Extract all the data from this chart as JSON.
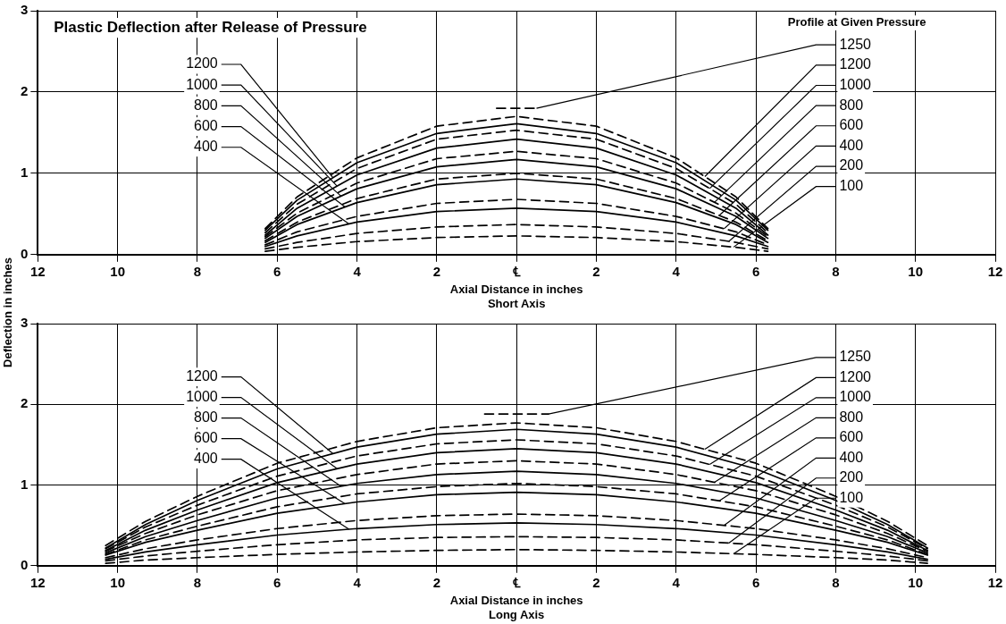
{
  "chart_data": [
    {
      "type": "line",
      "title": "Plastic Deflection after Release of Pressure",
      "annotations": [
        "Profile at Given Pressure"
      ],
      "xlabel": "Axial Distance in inches\nShort Axis",
      "ylabel": "Deflection in inches",
      "xlim": [
        -12,
        12
      ],
      "ylim": [
        0,
        3
      ],
      "xticks": [
        {
          "value": -12,
          "label": "12"
        },
        {
          "value": -10,
          "label": "10"
        },
        {
          "value": -8,
          "label": "8"
        },
        {
          "value": -6,
          "label": "6"
        },
        {
          "value": -4,
          "label": "4"
        },
        {
          "value": -2,
          "label": "2"
        },
        {
          "value": 0,
          "label": "℄"
        },
        2,
        4,
        6,
        8,
        10,
        12
      ],
      "yticks": [
        0,
        1,
        2,
        3
      ],
      "grid": true,
      "marker": "none",
      "series": [
        {
          "name": "1200",
          "color": "#000000",
          "line_style": "solid",
          "x": [
            -6.3,
            -5.5,
            -4,
            -2,
            0,
            2,
            4,
            5.5,
            6.3
          ],
          "values": [
            0.3,
            0.67,
            1.13,
            1.49,
            1.61,
            1.49,
            1.13,
            0.67,
            0.3
          ]
        },
        {
          "name": "1000",
          "color": "#000000",
          "line_style": "solid",
          "x": [
            -6.3,
            -5.5,
            -4,
            -2,
            0,
            2,
            4,
            5.5,
            6.3
          ],
          "values": [
            0.24,
            0.57,
            0.98,
            1.31,
            1.42,
            1.31,
            0.98,
            0.57,
            0.24
          ]
        },
        {
          "name": "800",
          "color": "#000000",
          "line_style": "solid",
          "x": [
            -6.3,
            -5.5,
            -4,
            -2,
            0,
            2,
            4,
            5.5,
            6.3
          ],
          "values": [
            0.2,
            0.47,
            0.81,
            1.08,
            1.17,
            1.08,
            0.81,
            0.47,
            0.2
          ]
        },
        {
          "name": "600",
          "color": "#000000",
          "line_style": "solid",
          "x": [
            -6.3,
            -5.5,
            -4,
            -2,
            0,
            2,
            4,
            5.5,
            6.3
          ],
          "values": [
            0.15,
            0.37,
            0.64,
            0.86,
            0.93,
            0.86,
            0.64,
            0.37,
            0.15
          ]
        },
        {
          "name": "400",
          "color": "#000000",
          "line_style": "solid",
          "x": [
            -6.3,
            -5.5,
            -4,
            -2,
            0,
            2,
            4,
            5.5,
            6.3
          ],
          "values": [
            0.1,
            0.23,
            0.4,
            0.53,
            0.57,
            0.53,
            0.4,
            0.23,
            0.1
          ]
        },
        {
          "name": "1250",
          "color": "#000000",
          "line_style": "dashed",
          "x": [
            -0.5,
            0,
            0.5
          ],
          "values": [
            1.8,
            1.8,
            1.8
          ]
        },
        {
          "name": "1200",
          "color": "#000000",
          "line_style": "dashed",
          "x": [
            -6.3,
            -5.5,
            -4,
            -2,
            0,
            2,
            4,
            5.5,
            6.3
          ],
          "values": [
            0.32,
            0.71,
            1.19,
            1.58,
            1.7,
            1.58,
            1.19,
            0.71,
            0.32
          ]
        },
        {
          "name": "1000",
          "color": "#000000",
          "line_style": "dashed",
          "x": [
            -6.3,
            -5.5,
            -4,
            -2,
            0,
            2,
            4,
            5.5,
            6.3
          ],
          "values": [
            0.27,
            0.62,
            1.06,
            1.42,
            1.53,
            1.42,
            1.06,
            0.62,
            0.27
          ]
        },
        {
          "name": "800",
          "color": "#000000",
          "line_style": "dashed",
          "x": [
            -6.3,
            -5.5,
            -4,
            -2,
            0,
            2,
            4,
            5.5,
            6.3
          ],
          "values": [
            0.22,
            0.51,
            0.88,
            1.18,
            1.27,
            1.18,
            0.88,
            0.51,
            0.22
          ]
        },
        {
          "name": "600",
          "color": "#000000",
          "line_style": "dashed",
          "x": [
            -6.3,
            -5.5,
            -4,
            -2,
            0,
            2,
            4,
            5.5,
            6.3
          ],
          "values": [
            0.17,
            0.4,
            0.69,
            0.93,
            1.0,
            0.93,
            0.69,
            0.4,
            0.17
          ]
        },
        {
          "name": "400",
          "color": "#000000",
          "line_style": "dashed",
          "x": [
            -6.3,
            -5.5,
            -4,
            -2,
            0,
            2,
            4,
            5.5,
            6.3
          ],
          "values": [
            0.12,
            0.28,
            0.47,
            0.63,
            0.68,
            0.63,
            0.47,
            0.28,
            0.12
          ]
        },
        {
          "name": "200",
          "color": "#000000",
          "line_style": "dashed",
          "x": [
            -6.3,
            -5.5,
            -4,
            -2,
            0,
            2,
            4,
            5.5,
            6.3
          ],
          "values": [
            0.07,
            0.15,
            0.26,
            0.34,
            0.37,
            0.34,
            0.26,
            0.15,
            0.07
          ]
        },
        {
          "name": "100",
          "color": "#000000",
          "line_style": "dashed",
          "x": [
            -6.3,
            -5.5,
            -4,
            -2,
            0,
            2,
            4,
            5.5,
            6.3
          ],
          "values": [
            0.04,
            0.09,
            0.16,
            0.21,
            0.23,
            0.21,
            0.16,
            0.09,
            0.04
          ]
        }
      ]
    },
    {
      "type": "line",
      "xlabel": "Axial Distance in inches\nLong Axis",
      "xlim": [
        -12,
        12
      ],
      "ylim": [
        0,
        3
      ],
      "xticks": [
        {
          "value": -12,
          "label": "12"
        },
        {
          "value": -10,
          "label": "10"
        },
        {
          "value": -8,
          "label": "8"
        },
        {
          "value": -6,
          "label": "6"
        },
        {
          "value": -4,
          "label": "4"
        },
        {
          "value": -2,
          "label": "2"
        },
        {
          "value": 0,
          "label": "℄"
        },
        2,
        4,
        6,
        8,
        10,
        12
      ],
      "yticks": [
        0,
        1,
        2,
        3
      ],
      "grid": true,
      "marker": "none",
      "series": [
        {
          "name": "1200",
          "color": "#000000",
          "line_style": "solid",
          "x": [
            -10.3,
            -9.3,
            -8,
            -6,
            -4,
            -2,
            0,
            2,
            4,
            6,
            8,
            9.3,
            10.3
          ],
          "values": [
            0.22,
            0.51,
            0.81,
            1.2,
            1.47,
            1.63,
            1.69,
            1.63,
            1.47,
            1.2,
            0.81,
            0.51,
            0.22
          ]
        },
        {
          "name": "1000",
          "color": "#000000",
          "line_style": "solid",
          "x": [
            -10.3,
            -9.3,
            -8,
            -6,
            -4,
            -2,
            0,
            2,
            4,
            6,
            8,
            9.3,
            10.3
          ],
          "values": [
            0.19,
            0.44,
            0.69,
            1.03,
            1.26,
            1.4,
            1.45,
            1.4,
            1.26,
            1.03,
            0.69,
            0.44,
            0.19
          ]
        },
        {
          "name": "800",
          "color": "#000000",
          "line_style": "solid",
          "x": [
            -10.3,
            -9.3,
            -8,
            -6,
            -4,
            -2,
            0,
            2,
            4,
            6,
            8,
            9.3,
            10.3
          ],
          "values": [
            0.16,
            0.36,
            0.56,
            0.84,
            1.02,
            1.13,
            1.17,
            1.13,
            1.02,
            0.84,
            0.56,
            0.36,
            0.16
          ]
        },
        {
          "name": "600",
          "color": "#000000",
          "line_style": "solid",
          "x": [
            -10.3,
            -9.3,
            -8,
            -6,
            -4,
            -2,
            0,
            2,
            4,
            6,
            8,
            9.3,
            10.3
          ],
          "values": [
            0.13,
            0.29,
            0.44,
            0.65,
            0.79,
            0.88,
            0.91,
            0.88,
            0.79,
            0.65,
            0.44,
            0.29,
            0.13
          ]
        },
        {
          "name": "400",
          "color": "#000000",
          "line_style": "solid",
          "x": [
            -10.3,
            -9.3,
            -8,
            -6,
            -4,
            -2,
            0,
            2,
            4,
            6,
            8,
            9.3,
            10.3
          ],
          "values": [
            0.08,
            0.17,
            0.26,
            0.38,
            0.46,
            0.51,
            0.53,
            0.51,
            0.46,
            0.38,
            0.26,
            0.17,
            0.08
          ]
        },
        {
          "name": "1250",
          "color": "#000000",
          "line_style": "dashed",
          "x": [
            -0.8,
            0,
            0.8
          ],
          "values": [
            1.88,
            1.88,
            1.88
          ]
        },
        {
          "name": "1200",
          "color": "#000000",
          "line_style": "dashed",
          "x": [
            -10.3,
            -9.3,
            -8,
            -6,
            -4,
            -2,
            0,
            2,
            4,
            6,
            8,
            9.3,
            10.3
          ],
          "values": [
            0.25,
            0.55,
            0.86,
            1.27,
            1.54,
            1.71,
            1.77,
            1.71,
            1.54,
            1.27,
            0.86,
            0.55,
            0.25
          ]
        },
        {
          "name": "1000",
          "color": "#000000",
          "line_style": "dashed",
          "x": [
            -10.3,
            -9.3,
            -8,
            -6,
            -4,
            -2,
            0,
            2,
            4,
            6,
            8,
            9.3,
            10.3
          ],
          "values": [
            0.21,
            0.48,
            0.75,
            1.11,
            1.36,
            1.51,
            1.56,
            1.51,
            1.36,
            1.11,
            0.75,
            0.48,
            0.21
          ]
        },
        {
          "name": "800",
          "color": "#000000",
          "line_style": "dashed",
          "x": [
            -10.3,
            -9.3,
            -8,
            -6,
            -4,
            -2,
            0,
            2,
            4,
            6,
            8,
            9.3,
            10.3
          ],
          "values": [
            0.18,
            0.4,
            0.63,
            0.93,
            1.13,
            1.26,
            1.3,
            1.26,
            1.13,
            0.93,
            0.63,
            0.4,
            0.18
          ]
        },
        {
          "name": "600",
          "color": "#000000",
          "line_style": "dashed",
          "x": [
            -10.3,
            -9.3,
            -8,
            -6,
            -4,
            -2,
            0,
            2,
            4,
            6,
            8,
            9.3,
            10.3
          ],
          "values": [
            0.14,
            0.32,
            0.49,
            0.73,
            0.89,
            0.98,
            1.02,
            0.98,
            0.89,
            0.73,
            0.49,
            0.32,
            0.14
          ]
        },
        {
          "name": "400",
          "color": "#000000",
          "line_style": "dashed",
          "x": [
            -10.3,
            -9.3,
            -8,
            -6,
            -4,
            -2,
            0,
            2,
            4,
            6,
            8,
            9.3,
            10.3
          ],
          "values": [
            0.1,
            0.21,
            0.32,
            0.46,
            0.56,
            0.62,
            0.64,
            0.62,
            0.56,
            0.46,
            0.32,
            0.21,
            0.1
          ]
        },
        {
          "name": "200",
          "color": "#000000",
          "line_style": "dashed",
          "x": [
            -10.3,
            -9.3,
            -8,
            -6,
            -4,
            -2,
            0,
            2,
            4,
            6,
            8,
            9.3,
            10.3
          ],
          "values": [
            0.06,
            0.12,
            0.18,
            0.26,
            0.32,
            0.35,
            0.36,
            0.35,
            0.32,
            0.26,
            0.18,
            0.12,
            0.06
          ]
        },
        {
          "name": "100",
          "color": "#000000",
          "line_style": "dashed",
          "x": [
            -10.3,
            -9.3,
            -8,
            -6,
            -4,
            -2,
            0,
            2,
            4,
            6,
            8,
            9.3,
            10.3
          ],
          "values": [
            0.03,
            0.07,
            0.1,
            0.14,
            0.17,
            0.19,
            0.2,
            0.19,
            0.17,
            0.14,
            0.1,
            0.07,
            0.03
          ]
        }
      ]
    }
  ]
}
